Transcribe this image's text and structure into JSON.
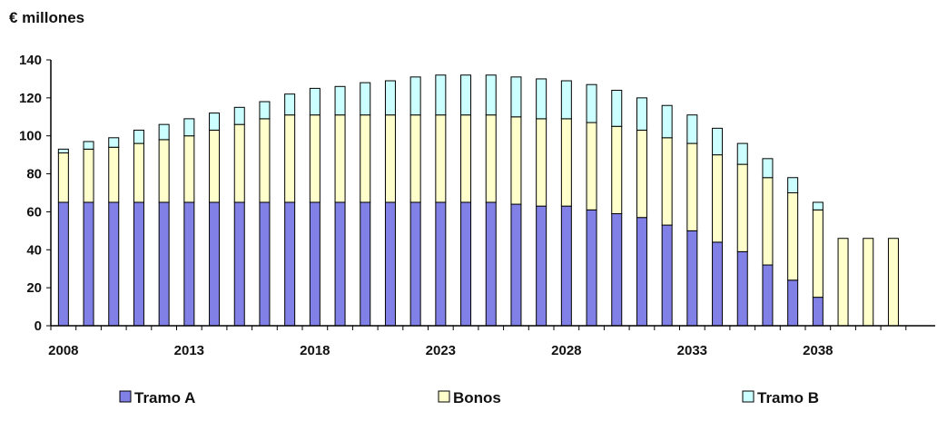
{
  "chart_data": {
    "type": "bar",
    "stacked": true,
    "unit_label": "€ millones",
    "title": "",
    "xlabel": "",
    "ylabel": "",
    "ylim": [
      0,
      140
    ],
    "y_ticks": [
      "0",
      "20",
      "40",
      "60",
      "80",
      "100",
      "120",
      "140"
    ],
    "x_tick_labels": [
      "2008",
      "2013",
      "2018",
      "2023",
      "2028",
      "2033",
      "2038"
    ],
    "grid": false,
    "legend_position": "bottom",
    "categories": [
      "2008",
      "2009",
      "2010",
      "2011",
      "2012",
      "2013",
      "2014",
      "2015",
      "2016",
      "2017",
      "2018",
      "2019",
      "2020",
      "2021",
      "2022",
      "2023",
      "2024",
      "2025",
      "2026",
      "2027",
      "2028",
      "2029",
      "2030",
      "2031",
      "2032",
      "2033",
      "2034",
      "2035",
      "2036",
      "2037",
      "2038",
      "2039",
      "2040",
      "2041"
    ],
    "series": [
      {
        "name": "Tramo A",
        "color": "#8080e6",
        "values": [
          65,
          65,
          65,
          65,
          65,
          65,
          65,
          65,
          65,
          65,
          65,
          65,
          65,
          65,
          65,
          65,
          65,
          65,
          64,
          63,
          63,
          61,
          59,
          57,
          53,
          50,
          44,
          39,
          32,
          24,
          15,
          0,
          0,
          0
        ]
      },
      {
        "name": "Bonos",
        "color": "#ffffcc",
        "values": [
          26,
          28,
          29,
          31,
          33,
          35,
          38,
          41,
          44,
          46,
          46,
          46,
          46,
          46,
          46,
          46,
          46,
          46,
          46,
          46,
          46,
          46,
          46,
          46,
          46,
          46,
          46,
          46,
          46,
          46,
          46,
          46,
          46,
          46
        ]
      },
      {
        "name": "Tramo B",
        "color": "#ccffff",
        "values": [
          2,
          4,
          5,
          7,
          8,
          9,
          9,
          9,
          9,
          11,
          14,
          15,
          17,
          18,
          20,
          21,
          21,
          21,
          21,
          21,
          20,
          20,
          19,
          17,
          17,
          15,
          14,
          11,
          10,
          8,
          4,
          0,
          0,
          0
        ]
      }
    ]
  }
}
